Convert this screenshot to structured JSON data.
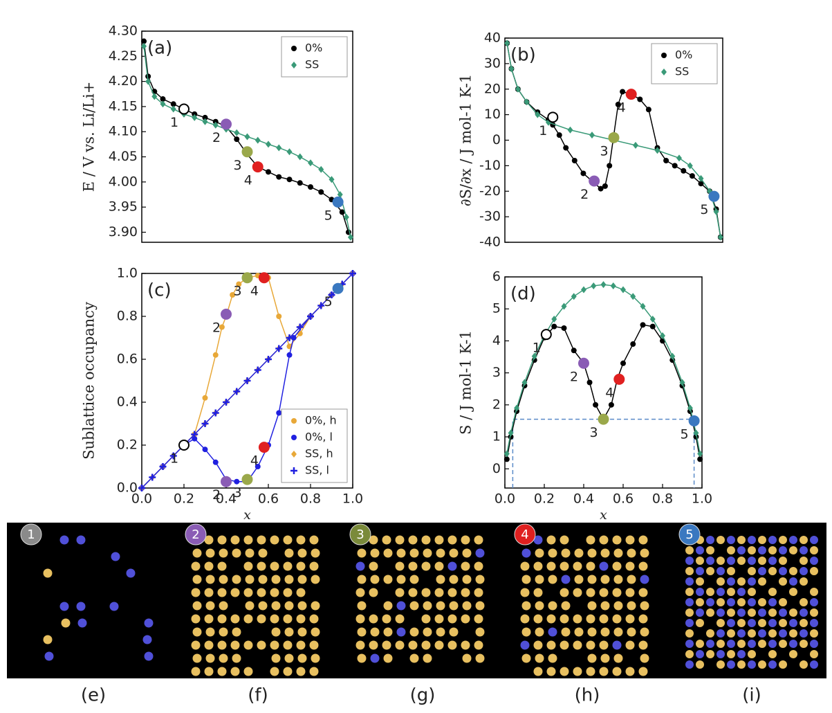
{
  "chart_data": [
    {
      "type": "scatter",
      "title": "(a)",
      "y_label": "E / V vs. Li/Li+",
      "legend": "upper right",
      "xlim": [
        0,
        1
      ],
      "ylim": [
        3.88,
        4.3
      ],
      "yticks": [
        {
          "value": 3.9,
          "label": "3.90"
        },
        3.95,
        {
          "value": 4.0,
          "label": "4.00"
        },
        4.05,
        {
          "value": 4.1,
          "label": "4.10"
        },
        4.15,
        {
          "value": 4.2,
          "label": "4.20"
        },
        4.25,
        {
          "value": 4.3,
          "label": "4.30"
        }
      ],
      "series": [
        {
          "name": "0%",
          "color": "#000000",
          "marker": "circle",
          "line": true,
          "x": [
            0.01,
            0.03,
            0.06,
            0.1,
            0.15,
            0.2,
            0.25,
            0.3,
            0.35,
            0.4,
            0.45,
            0.5,
            0.55,
            0.6,
            0.65,
            0.7,
            0.75,
            0.8,
            0.85,
            0.9,
            0.95,
            0.98
          ],
          "values": [
            4.28,
            4.21,
            4.18,
            4.165,
            4.155,
            4.145,
            4.135,
            4.128,
            4.12,
            4.11,
            4.085,
            4.055,
            4.03,
            4.02,
            4.01,
            4.005,
            3.998,
            3.99,
            3.98,
            3.965,
            3.94,
            3.9
          ]
        },
        {
          "name": "SS",
          "color": "#3a9a78",
          "marker": "diamond",
          "line": true,
          "x": [
            0.01,
            0.03,
            0.06,
            0.1,
            0.15,
            0.2,
            0.25,
            0.3,
            0.35,
            0.4,
            0.45,
            0.5,
            0.55,
            0.6,
            0.65,
            0.7,
            0.75,
            0.8,
            0.85,
            0.9,
            0.94,
            0.97,
            0.99
          ],
          "values": [
            4.27,
            4.2,
            4.17,
            4.155,
            4.145,
            4.135,
            4.128,
            4.12,
            4.113,
            4.105,
            4.098,
            4.09,
            4.083,
            4.075,
            4.068,
            4.06,
            4.05,
            4.038,
            4.025,
            4.005,
            3.975,
            3.93,
            3.89
          ]
        }
      ],
      "highlights": [
        {
          "label": "1",
          "x": 0.2,
          "y": 4.145,
          "color": "none"
        },
        {
          "label": "2",
          "x": 0.4,
          "y": 4.115,
          "color": "#8a5cb5"
        },
        {
          "label": "3",
          "x": 0.5,
          "y": 4.06,
          "color": "#9aa84a"
        },
        {
          "label": "4",
          "x": 0.55,
          "y": 4.03,
          "color": "#e02020"
        },
        {
          "label": "5",
          "x": 0.93,
          "y": 3.96,
          "color": "#3a78c0"
        }
      ]
    },
    {
      "type": "scatter",
      "title": "(b)",
      "y_label": "∂S/∂x / J mol-1 K-1",
      "legend": "upper right",
      "xlim": [
        0,
        1
      ],
      "ylim": [
        -40,
        40
      ],
      "yticks": [
        -40,
        -30,
        -20,
        -10,
        0,
        10,
        20,
        30,
        40
      ],
      "series": [
        {
          "name": "0%",
          "color": "#000000",
          "marker": "circle",
          "line": true,
          "x": [
            0.01,
            0.03,
            0.06,
            0.1,
            0.15,
            0.2,
            0.22,
            0.25,
            0.28,
            0.32,
            0.36,
            0.4,
            0.44,
            0.46,
            0.48,
            0.5,
            0.52,
            0.54,
            0.58,
            0.62,
            0.66,
            0.7,
            0.74,
            0.78,
            0.82,
            0.86,
            0.9,
            0.94,
            0.97,
            0.99
          ],
          "values": [
            38,
            28,
            20,
            15,
            11,
            8,
            6,
            2,
            -3,
            -8,
            -13,
            -16,
            -19,
            -18,
            -10,
            2,
            14,
            19,
            18,
            16,
            12,
            -3,
            -8,
            -10,
            -12,
            -14,
            -17,
            -20,
            -27,
            -38
          ]
        },
        {
          "name": "SS",
          "color": "#3a9a78",
          "marker": "diamond",
          "line": true,
          "x": [
            0.01,
            0.03,
            0.06,
            0.1,
            0.15,
            0.2,
            0.3,
            0.4,
            0.5,
            0.6,
            0.7,
            0.8,
            0.85,
            0.9,
            0.94,
            0.97,
            0.99
          ],
          "values": [
            38,
            28,
            20,
            15,
            10,
            7,
            4,
            2,
            0,
            -2,
            -4,
            -7,
            -10,
            -15,
            -20,
            -28,
            -38
          ]
        }
      ],
      "highlights": [
        {
          "label": "1",
          "x": 0.22,
          "y": 9,
          "color": "none"
        },
        {
          "label": "2",
          "x": 0.41,
          "y": -16,
          "color": "#8a5cb5"
        },
        {
          "label": "3",
          "x": 0.5,
          "y": 1,
          "color": "#9aa84a"
        },
        {
          "label": "4",
          "x": 0.58,
          "y": 18,
          "color": "#e02020"
        },
        {
          "label": "5",
          "x": 0.96,
          "y": -22,
          "color": "#3a78c0"
        }
      ]
    },
    {
      "type": "scatter",
      "title": "(c)",
      "y_label": "Sublattice occupancy",
      "x_label": "x",
      "legend": "lower right",
      "xlim": [
        0,
        1
      ],
      "ylim": [
        0,
        1
      ],
      "xticks": [
        {
          "value": 0,
          "label": "0.0"
        },
        0.2,
        0.4,
        0.6,
        0.8,
        {
          "value": 1,
          "label": "1.0"
        }
      ],
      "yticks": [
        {
          "value": 0,
          "label": "0.0"
        },
        0.2,
        0.4,
        0.6,
        0.8,
        {
          "value": 1,
          "label": "1.0"
        }
      ],
      "series": [
        {
          "name": "0%, h",
          "color": "#e8a838",
          "marker": "circle",
          "line": true,
          "x": [
            0,
            0.1,
            0.2,
            0.25,
            0.3,
            0.35,
            0.38,
            0.4,
            0.43,
            0.46,
            0.5,
            0.55,
            0.6,
            0.65,
            0.7,
            0.75,
            0.8,
            0.9,
            1
          ],
          "values": [
            0,
            0.1,
            0.2,
            0.25,
            0.42,
            0.62,
            0.75,
            0.8,
            0.9,
            0.95,
            0.98,
            0.99,
            0.98,
            0.8,
            0.66,
            0.72,
            0.8,
            0.9,
            1
          ]
        },
        {
          "name": "0%, l",
          "color": "#2020e0",
          "marker": "circle",
          "line": true,
          "x": [
            0,
            0.1,
            0.2,
            0.25,
            0.3,
            0.35,
            0.4,
            0.45,
            0.5,
            0.55,
            0.6,
            0.65,
            0.7,
            0.72,
            0.8,
            0.9,
            1
          ],
          "values": [
            0,
            0.1,
            0.2,
            0.23,
            0.18,
            0.12,
            0.04,
            0.03,
            0.03,
            0.1,
            0.2,
            0.35,
            0.62,
            0.7,
            0.8,
            0.9,
            1
          ]
        },
        {
          "name": "SS, h",
          "color": "#e8a838",
          "marker": "diamond",
          "line": true,
          "x": [
            0,
            0.05,
            0.1,
            0.15,
            0.2,
            0.25,
            0.3,
            0.35,
            0.4,
            0.45,
            0.5,
            0.55,
            0.6,
            0.65,
            0.7,
            0.75,
            0.8,
            0.85,
            0.9,
            0.95,
            1
          ],
          "values": [
            0,
            0.05,
            0.1,
            0.15,
            0.2,
            0.25,
            0.3,
            0.35,
            0.4,
            0.45,
            0.5,
            0.55,
            0.6,
            0.65,
            0.7,
            0.75,
            0.8,
            0.85,
            0.9,
            0.95,
            1
          ]
        },
        {
          "name": "SS, l",
          "color": "#2020e0",
          "marker": "plus",
          "line": true,
          "x": [
            0,
            0.05,
            0.1,
            0.15,
            0.2,
            0.25,
            0.3,
            0.35,
            0.4,
            0.45,
            0.5,
            0.55,
            0.6,
            0.65,
            0.7,
            0.75,
            0.8,
            0.85,
            0.9,
            0.95,
            1
          ],
          "values": [
            0,
            0.05,
            0.1,
            0.15,
            0.2,
            0.25,
            0.3,
            0.35,
            0.4,
            0.45,
            0.5,
            0.55,
            0.6,
            0.65,
            0.7,
            0.75,
            0.8,
            0.85,
            0.9,
            0.95,
            1
          ]
        }
      ],
      "highlights": [
        {
          "label": "1",
          "x": 0.2,
          "y": 0.2,
          "color": "none"
        },
        {
          "label": "2",
          "x": 0.4,
          "y": 0.81,
          "color": "#8a5cb5"
        },
        {
          "label": "2",
          "x": 0.4,
          "y": 0.03,
          "color": "#8a5cb5"
        },
        {
          "label": "3",
          "x": 0.5,
          "y": 0.98,
          "color": "#9aa84a"
        },
        {
          "label": "3",
          "x": 0.5,
          "y": 0.04,
          "color": "#9aa84a"
        },
        {
          "label": "4",
          "x": 0.58,
          "y": 0.98,
          "color": "#e02020"
        },
        {
          "label": "4",
          "x": 0.58,
          "y": 0.19,
          "color": "#e02020"
        },
        {
          "label": "5",
          "x": 0.93,
          "y": 0.93,
          "color": "#3a78c0"
        }
      ]
    },
    {
      "type": "scatter",
      "title": "(d)",
      "y_label": "S / J mol-1 K-1",
      "x_label": "x",
      "xlim": [
        0,
        1
      ],
      "ylim": [
        -0.6,
        6
      ],
      "xticks": [
        {
          "value": 0,
          "label": "0.0"
        },
        0.2,
        0.4,
        0.6,
        0.8,
        {
          "value": 1,
          "label": "1.0"
        }
      ],
      "yticks": [
        0,
        1,
        2,
        3,
        4,
        5,
        6
      ],
      "series": [
        {
          "name": "0%",
          "color": "#000000",
          "marker": "circle",
          "line": true,
          "x": [
            0.01,
            0.03,
            0.06,
            0.1,
            0.15,
            0.2,
            0.25,
            0.3,
            0.35,
            0.4,
            0.43,
            0.46,
            0.5,
            0.54,
            0.57,
            0.6,
            0.65,
            0.7,
            0.75,
            0.8,
            0.85,
            0.9,
            0.94,
            0.97,
            0.99
          ],
          "values": [
            0.3,
            1.0,
            1.8,
            2.6,
            3.4,
            4.1,
            4.45,
            4.4,
            3.7,
            3.3,
            2.7,
            2.0,
            1.55,
            2.0,
            2.8,
            3.3,
            3.9,
            4.5,
            4.45,
            4.0,
            3.4,
            2.6,
            1.8,
            1.0,
            0.3
          ]
        },
        {
          "name": "SS",
          "color": "#3a9a78",
          "marker": "diamond",
          "line": true,
          "x": [
            0.01,
            0.03,
            0.06,
            0.1,
            0.15,
            0.2,
            0.25,
            0.3,
            0.35,
            0.4,
            0.45,
            0.5,
            0.55,
            0.6,
            0.65,
            0.7,
            0.75,
            0.8,
            0.85,
            0.9,
            0.94,
            0.97,
            0.99
          ],
          "values": [
            0.47,
            1.12,
            1.9,
            2.7,
            3.52,
            4.16,
            4.68,
            5.08,
            5.39,
            5.6,
            5.72,
            5.76,
            5.72,
            5.6,
            5.39,
            5.08,
            4.68,
            4.16,
            3.52,
            2.7,
            1.9,
            1.12,
            0.47
          ]
        }
      ],
      "reference_line": {
        "y": 1.55,
        "x": [
          0.04,
          0.96
        ]
      },
      "highlights": [
        {
          "label": "1",
          "x": 0.21,
          "y": 4.2,
          "color": "none"
        },
        {
          "label": "2",
          "x": 0.4,
          "y": 3.3,
          "color": "#8a5cb5"
        },
        {
          "label": "3",
          "x": 0.5,
          "y": 1.55,
          "color": "#9aa84a"
        },
        {
          "label": "4",
          "x": 0.58,
          "y": 2.8,
          "color": "#e02020"
        },
        {
          "label": "5",
          "x": 0.96,
          "y": 1.5,
          "color": "#3a78c0"
        }
      ]
    }
  ],
  "snapshots": [
    {
      "badge": "1",
      "caption": "(e)",
      "color": "#8a8a8a"
    },
    {
      "badge": "2",
      "caption": "(f)",
      "color": "#8a5cb5"
    },
    {
      "badge": "3",
      "caption": "(g)",
      "color": "#7a8a3a"
    },
    {
      "badge": "4",
      "caption": "(h)",
      "color": "#e02020"
    },
    {
      "badge": "5",
      "caption": "(i)",
      "color": "#3a78c0"
    }
  ]
}
